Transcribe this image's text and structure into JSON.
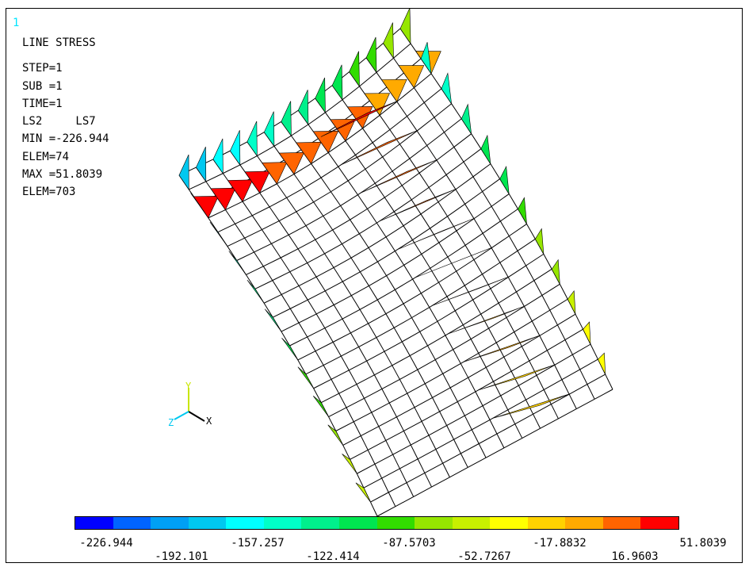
{
  "window_number": "1",
  "info": {
    "title": "LINE STRESS",
    "lines": [
      "STEP=1",
      "SUB =1",
      "TIME=1",
      "LS2     LS7",
      "MIN =-226.944",
      "ELEM=74",
      "MAX =51.8039",
      "ELEM=703"
    ]
  },
  "triad": {
    "y_label": "Y",
    "z_label": "Z",
    "x_label": "X"
  },
  "legend": {
    "colors": [
      "#0000ff",
      "#0064ff",
      "#00a0f5",
      "#00c8f0",
      "#00ffff",
      "#00ffc8",
      "#00f08c",
      "#00e650",
      "#32dc00",
      "#96e600",
      "#c8f000",
      "#ffff00",
      "#ffd200",
      "#ffaa00",
      "#ff6400",
      "#ff0000"
    ],
    "labels_top": [
      "-226.944",
      "-157.257",
      "-87.5703",
      "-17.8832",
      "51.8039"
    ],
    "labels_bottom": [
      "-192.101",
      "-122.414",
      "-52.7267",
      "16.9603"
    ]
  }
}
